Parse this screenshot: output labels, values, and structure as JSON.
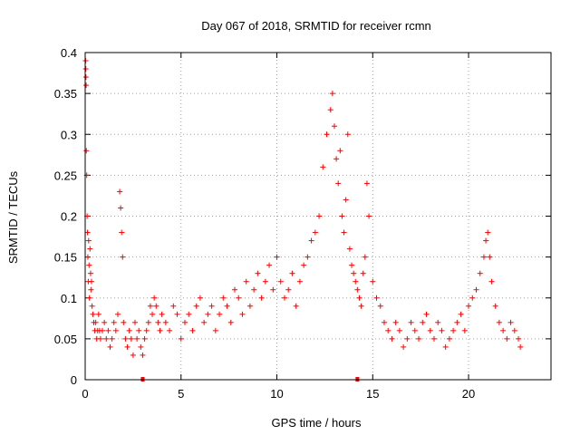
{
  "chart_data": {
    "type": "scatter",
    "title": "Day 067 of 2018, SRMTID for receiver rcmn",
    "xlabel": "GPS time / hours",
    "ylabel": "SRMTID / TECUs",
    "xlim": [
      0,
      24.3
    ],
    "ylim": [
      0,
      0.4
    ],
    "xticks": [
      0,
      5,
      10,
      15,
      20
    ],
    "yticks": [
      0,
      0.05,
      0.1,
      0.15,
      0.2,
      0.25,
      0.3,
      0.35,
      0.4
    ],
    "grid": true,
    "marker": "+",
    "series_color": "#ff0000",
    "series": [
      {
        "name": "SRMTID",
        "x": [
          0.02,
          0.03,
          0.04,
          0.05,
          0.06,
          0.08,
          0.1,
          0.12,
          0.14,
          0.16,
          0.18,
          0.2,
          0.22,
          0.25,
          0.28,
          0.3,
          0.33,
          0.36,
          0.4,
          0.45,
          0.5,
          0.55,
          0.6,
          0.65,
          0.7,
          0.75,
          0.8,
          0.9,
          1.0,
          1.1,
          1.2,
          1.3,
          1.4,
          1.5,
          1.6,
          1.7,
          1.8,
          1.85,
          1.9,
          1.95,
          2.0,
          2.1,
          2.2,
          2.3,
          2.4,
          2.5,
          2.6,
          2.7,
          2.8,
          2.9,
          3.0,
          3.1,
          3.2,
          3.3,
          3.4,
          3.5,
          3.6,
          3.7,
          3.8,
          3.9,
          4.0,
          4.2,
          4.4,
          4.6,
          4.8,
          5.0,
          5.2,
          5.4,
          5.6,
          5.8,
          6.0,
          6.2,
          6.4,
          6.6,
          6.8,
          7.0,
          7.2,
          7.4,
          7.6,
          7.8,
          8.0,
          8.2,
          8.4,
          8.6,
          8.8,
          9.0,
          9.2,
          9.4,
          9.6,
          9.8,
          10.0,
          10.2,
          10.4,
          10.6,
          10.8,
          11.0,
          11.2,
          11.4,
          11.6,
          11.8,
          12.0,
          12.2,
          12.4,
          12.6,
          12.8,
          12.9,
          13.0,
          13.1,
          13.2,
          13.3,
          13.4,
          13.5,
          13.6,
          13.7,
          13.8,
          13.9,
          14.0,
          14.1,
          14.2,
          14.3,
          14.4,
          14.5,
          14.6,
          14.7,
          14.8,
          15.0,
          15.2,
          15.4,
          15.6,
          15.8,
          16.0,
          16.2,
          16.4,
          16.6,
          16.8,
          17.0,
          17.2,
          17.4,
          17.6,
          17.8,
          18.0,
          18.2,
          18.4,
          18.6,
          18.8,
          19.0,
          19.2,
          19.4,
          19.6,
          19.8,
          20.0,
          20.2,
          20.4,
          20.6,
          20.8,
          20.9,
          21.0,
          21.1,
          21.2,
          21.4,
          21.6,
          21.8,
          22.0,
          22.2,
          22.4,
          22.6,
          22.7
        ],
        "y": [
          0.39,
          0.38,
          0.37,
          0.36,
          0.28,
          0.25,
          0.2,
          0.18,
          0.15,
          0.12,
          0.17,
          0.14,
          0.1,
          0.16,
          0.13,
          0.11,
          0.12,
          0.09,
          0.08,
          0.07,
          0.06,
          0.07,
          0.05,
          0.06,
          0.08,
          0.06,
          0.05,
          0.06,
          0.07,
          0.05,
          0.06,
          0.04,
          0.05,
          0.07,
          0.06,
          0.08,
          0.23,
          0.21,
          0.18,
          0.15,
          0.07,
          0.05,
          0.04,
          0.06,
          0.05,
          0.03,
          0.07,
          0.05,
          0.06,
          0.04,
          0.03,
          0.05,
          0.06,
          0.07,
          0.09,
          0.08,
          0.1,
          0.09,
          0.07,
          0.06,
          0.08,
          0.07,
          0.06,
          0.09,
          0.08,
          0.05,
          0.07,
          0.08,
          0.06,
          0.09,
          0.1,
          0.07,
          0.08,
          0.09,
          0.06,
          0.08,
          0.1,
          0.09,
          0.07,
          0.11,
          0.1,
          0.08,
          0.12,
          0.09,
          0.11,
          0.13,
          0.1,
          0.12,
          0.14,
          0.11,
          0.15,
          0.12,
          0.1,
          0.11,
          0.13,
          0.09,
          0.12,
          0.14,
          0.15,
          0.17,
          0.18,
          0.2,
          0.26,
          0.3,
          0.33,
          0.35,
          0.31,
          0.27,
          0.24,
          0.28,
          0.2,
          0.18,
          0.22,
          0.3,
          0.16,
          0.14,
          0.13,
          0.12,
          0.11,
          0.1,
          0.09,
          0.13,
          0.15,
          0.24,
          0.2,
          0.12,
          0.1,
          0.09,
          0.07,
          0.06,
          0.05,
          0.07,
          0.06,
          0.04,
          0.05,
          0.07,
          0.06,
          0.05,
          0.07,
          0.08,
          0.06,
          0.05,
          0.07,
          0.06,
          0.04,
          0.05,
          0.06,
          0.07,
          0.08,
          0.06,
          0.09,
          0.1,
          0.11,
          0.13,
          0.15,
          0.17,
          0.18,
          0.15,
          0.12,
          0.09,
          0.07,
          0.06,
          0.05,
          0.07,
          0.06,
          0.05,
          0.04
        ]
      }
    ],
    "zero_markers_x": [
      3.0,
      14.2
    ]
  }
}
